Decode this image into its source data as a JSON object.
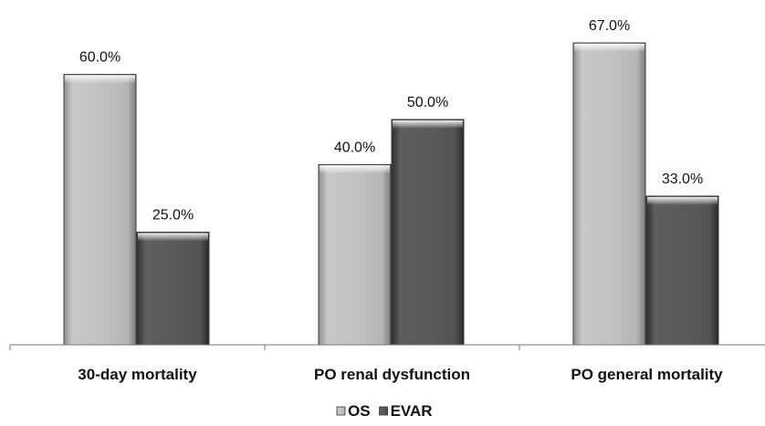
{
  "chart_data": {
    "type": "bar",
    "categories": [
      "30-day mortality",
      "PO renal dysfunction",
      "PO general mortality"
    ],
    "series": [
      {
        "name": "OS",
        "values": [
          60.0,
          40.0,
          67.0
        ],
        "labels": [
          "60.0%",
          "40.0%",
          "67.0%"
        ],
        "color": "#c4c4c4"
      },
      {
        "name": "EVAR",
        "values": [
          25.0,
          50.0,
          33.0
        ],
        "labels": [
          "25.0%",
          "50.0%",
          "33.0%"
        ],
        "color": "#5a5a5a"
      }
    ],
    "title": "",
    "xlabel": "",
    "ylabel": "",
    "ylim": [
      0,
      70
    ],
    "grid": false,
    "legend": "bottom-center"
  }
}
